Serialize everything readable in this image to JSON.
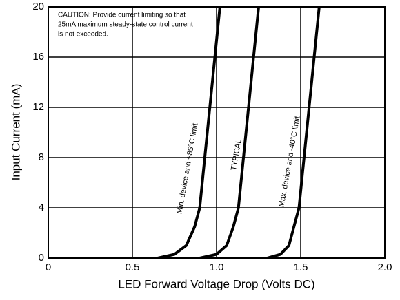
{
  "chart_data": {
    "type": "line",
    "xlabel": "LED Forward Voltage Drop (Volts DC)",
    "ylabel": "Input Current (mA)",
    "xlim": [
      0,
      2.0
    ],
    "ylim": [
      0,
      20
    ],
    "xticks": [
      0,
      0.5,
      {
        "value": 1.0,
        "label": "1.0"
      },
      1.5,
      {
        "value": 2.0,
        "label": "2.0"
      }
    ],
    "yticks": [
      0,
      4,
      8,
      12,
      16,
      20
    ],
    "grid": true,
    "series": [
      {
        "name": "Min. device and +85°C limit",
        "color": "#000000",
        "x": [
          0.65,
          0.75,
          0.82,
          0.87,
          0.9,
          0.93,
          0.96,
          0.99,
          1.02
        ],
        "values": [
          0,
          0.3,
          1,
          2.5,
          4,
          8,
          12,
          16,
          20
        ]
      },
      {
        "name": "TYPICAL",
        "color": "#000000",
        "x": [
          0.9,
          1.0,
          1.06,
          1.1,
          1.13,
          1.16,
          1.19,
          1.22,
          1.25
        ],
        "values": [
          0,
          0.3,
          1,
          2.5,
          4,
          8,
          12,
          16,
          20
        ]
      },
      {
        "name": "Max. device and -40°C limit",
        "color": "#000000",
        "x": [
          1.3,
          1.38,
          1.43,
          1.46,
          1.49,
          1.52,
          1.55,
          1.58,
          1.61
        ],
        "values": [
          0,
          0.3,
          1,
          2.5,
          4,
          8,
          12,
          16,
          20
        ]
      }
    ],
    "annotation": [
      "CAUTION: Provide current limiting so that",
      "25mA maximum steady-state control current",
      "is not exceeded."
    ]
  }
}
